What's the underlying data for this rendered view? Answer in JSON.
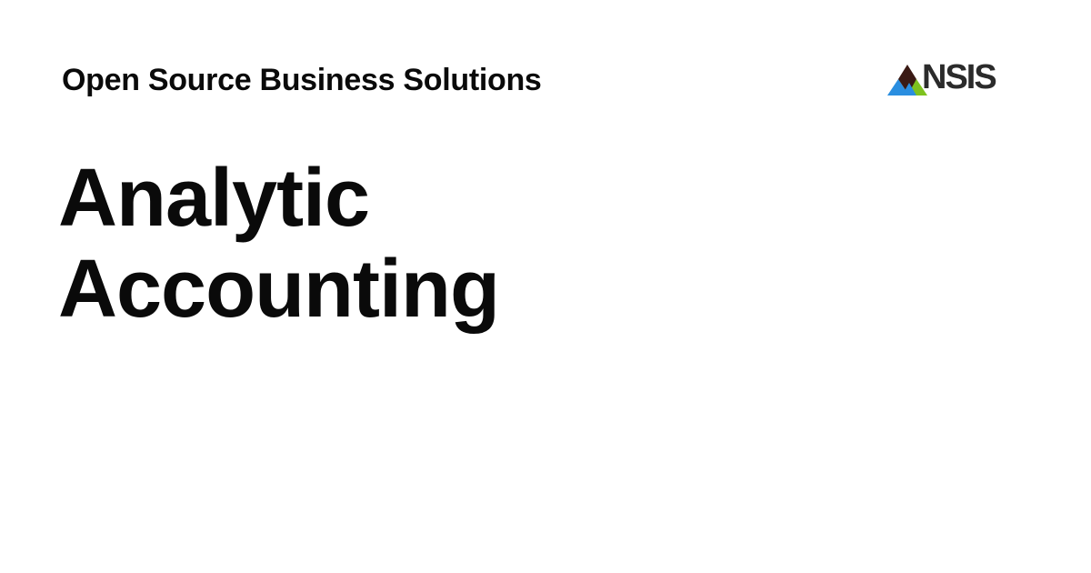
{
  "header": {
    "tagline": "Open Source Business Solutions",
    "logo": {
      "text": "NSIS",
      "icon": "nsis-mark-icon",
      "colors": {
        "blue": "#2a8ee0",
        "green": "#7ec21e",
        "dark": "#3a1a14"
      }
    }
  },
  "main": {
    "title_line1": "Analytic",
    "title_line2": "Accounting"
  }
}
